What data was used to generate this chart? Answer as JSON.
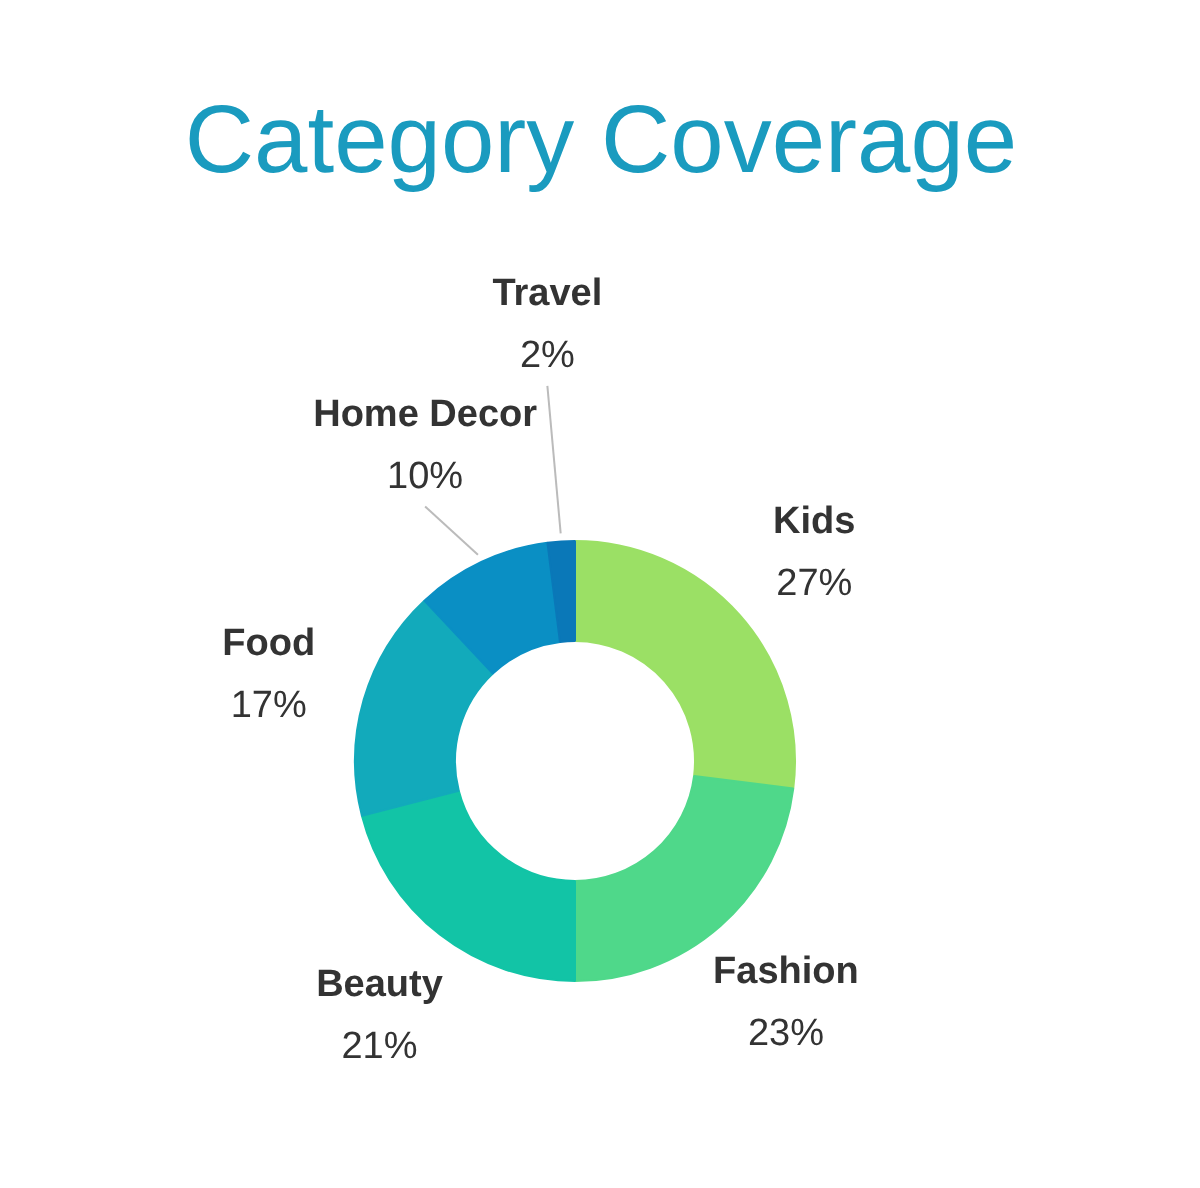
{
  "chart_data": {
    "type": "donut",
    "title": "Category Coverage",
    "categories": [
      "Kids",
      "Fashion",
      "Beauty",
      "Food",
      "Home Decor",
      "Travel"
    ],
    "values": [
      27,
      23,
      21,
      17,
      10,
      2
    ],
    "value_labels": [
      "27%",
      "23%",
      "21%",
      "17%",
      "10%",
      "2%"
    ],
    "colors": [
      "#9be065",
      "#4fd88a",
      "#12c4a6",
      "#12aabb",
      "#0a8fc4",
      "#0a78b8"
    ]
  }
}
